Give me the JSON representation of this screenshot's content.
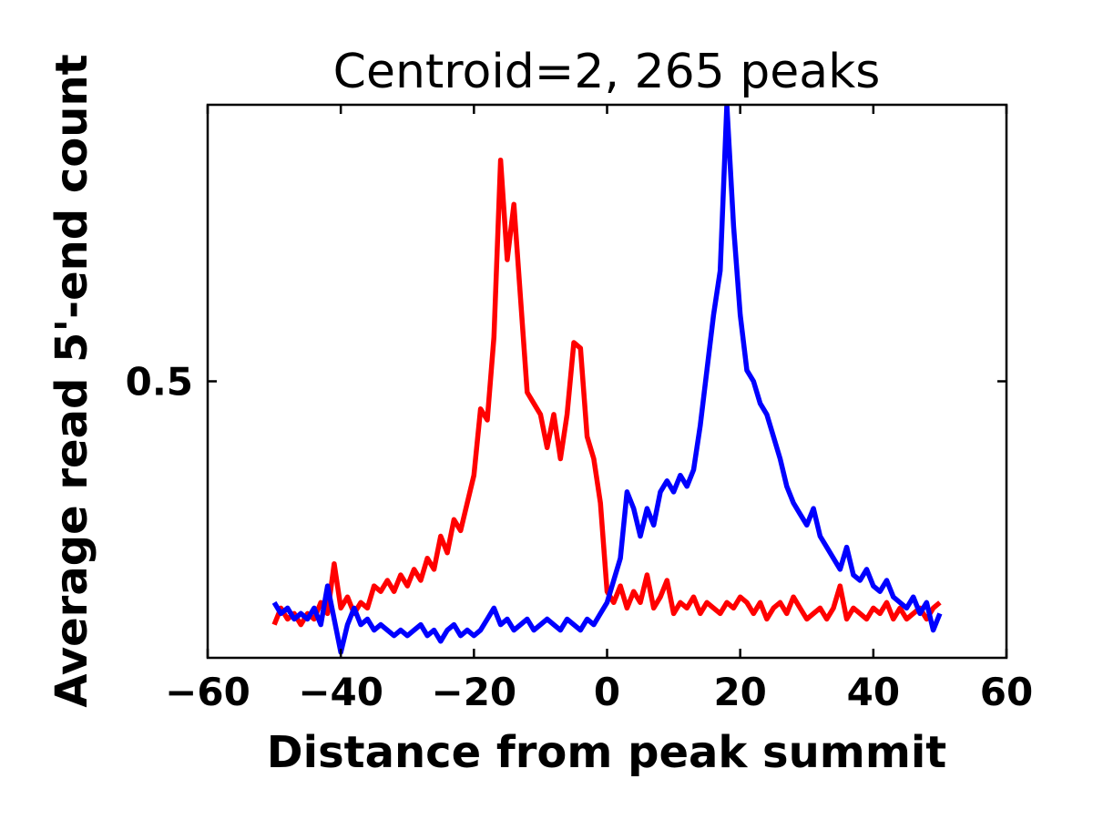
{
  "figure": {
    "background": "#ffffff",
    "axes_color": "#000000"
  },
  "chart_data": {
    "type": "line",
    "title": "Centroid=2, 265 peaks",
    "xlabel": "Distance from peak summit",
    "ylabel": "Average read 5'-end count",
    "xlim": [
      -60,
      60
    ],
    "ylim": [
      0,
      1.0
    ],
    "xticks": [
      -60,
      -40,
      -20,
      0,
      20,
      40,
      60
    ],
    "xtick_labels": [
      "−60",
      "−40",
      "−20",
      "0",
      "20",
      "40",
      "60"
    ],
    "yticks": [
      0.5
    ],
    "ytick_labels": [
      "0.5"
    ],
    "grid": false,
    "legend_position": "none",
    "line_width": 5.5,
    "x": [
      -50,
      -49,
      -48,
      -47,
      -46,
      -45,
      -44,
      -43,
      -42,
      -41,
      -40,
      -39,
      -38,
      -37,
      -36,
      -35,
      -34,
      -33,
      -32,
      -31,
      -30,
      -29,
      -28,
      -27,
      -26,
      -25,
      -24,
      -23,
      -22,
      -21,
      -20,
      -19,
      -18,
      -17,
      -16,
      -15,
      -14,
      -13,
      -12,
      -11,
      -10,
      -9,
      -8,
      -7,
      -6,
      -5,
      -4,
      -3,
      -2,
      -1,
      0,
      1,
      2,
      3,
      4,
      5,
      6,
      7,
      8,
      9,
      10,
      11,
      12,
      13,
      14,
      15,
      16,
      17,
      18,
      19,
      20,
      21,
      22,
      23,
      24,
      25,
      26,
      27,
      28,
      29,
      30,
      31,
      32,
      33,
      34,
      35,
      36,
      37,
      38,
      39,
      40,
      41,
      42,
      43,
      44,
      45,
      46,
      47,
      48,
      49,
      50
    ],
    "series": [
      {
        "name": "red",
        "color": "#ff0000",
        "values": [
          0.06,
          0.09,
          0.07,
          0.08,
          0.06,
          0.08,
          0.07,
          0.1,
          0.08,
          0.17,
          0.09,
          0.11,
          0.08,
          0.1,
          0.09,
          0.13,
          0.12,
          0.14,
          0.12,
          0.15,
          0.13,
          0.16,
          0.14,
          0.18,
          0.16,
          0.22,
          0.19,
          0.25,
          0.23,
          0.28,
          0.33,
          0.45,
          0.43,
          0.58,
          0.9,
          0.72,
          0.82,
          0.65,
          0.48,
          0.46,
          0.44,
          0.38,
          0.44,
          0.36,
          0.44,
          0.57,
          0.56,
          0.4,
          0.36,
          0.28,
          0.12,
          0.1,
          0.13,
          0.09,
          0.12,
          0.1,
          0.15,
          0.09,
          0.11,
          0.14,
          0.08,
          0.1,
          0.09,
          0.11,
          0.08,
          0.1,
          0.09,
          0.08,
          0.1,
          0.09,
          0.11,
          0.1,
          0.08,
          0.1,
          0.07,
          0.09,
          0.1,
          0.08,
          0.11,
          0.09,
          0.07,
          0.08,
          0.09,
          0.07,
          0.09,
          0.13,
          0.07,
          0.09,
          0.08,
          0.07,
          0.09,
          0.08,
          0.1,
          0.07,
          0.09,
          0.07,
          0.08,
          0.09,
          0.07,
          0.09,
          0.1
        ]
      },
      {
        "name": "blue",
        "color": "#0000ff",
        "values": [
          0.1,
          0.08,
          0.09,
          0.07,
          0.08,
          0.07,
          0.09,
          0.06,
          0.13,
          0.07,
          0.01,
          0.06,
          0.09,
          0.06,
          0.07,
          0.05,
          0.06,
          0.05,
          0.04,
          0.05,
          0.04,
          0.05,
          0.06,
          0.04,
          0.05,
          0.03,
          0.05,
          0.06,
          0.04,
          0.05,
          0.04,
          0.05,
          0.07,
          0.09,
          0.06,
          0.07,
          0.05,
          0.06,
          0.07,
          0.05,
          0.06,
          0.07,
          0.06,
          0.05,
          0.07,
          0.06,
          0.05,
          0.07,
          0.06,
          0.08,
          0.1,
          0.14,
          0.18,
          0.3,
          0.27,
          0.22,
          0.27,
          0.24,
          0.3,
          0.32,
          0.3,
          0.33,
          0.31,
          0.34,
          0.42,
          0.52,
          0.62,
          0.7,
          1.0,
          0.78,
          0.62,
          0.52,
          0.5,
          0.46,
          0.44,
          0.4,
          0.36,
          0.31,
          0.28,
          0.26,
          0.24,
          0.27,
          0.22,
          0.2,
          0.18,
          0.16,
          0.2,
          0.15,
          0.14,
          0.16,
          0.13,
          0.12,
          0.14,
          0.11,
          0.1,
          0.09,
          0.11,
          0.08,
          0.1,
          0.05,
          0.08
        ]
      }
    ]
  }
}
